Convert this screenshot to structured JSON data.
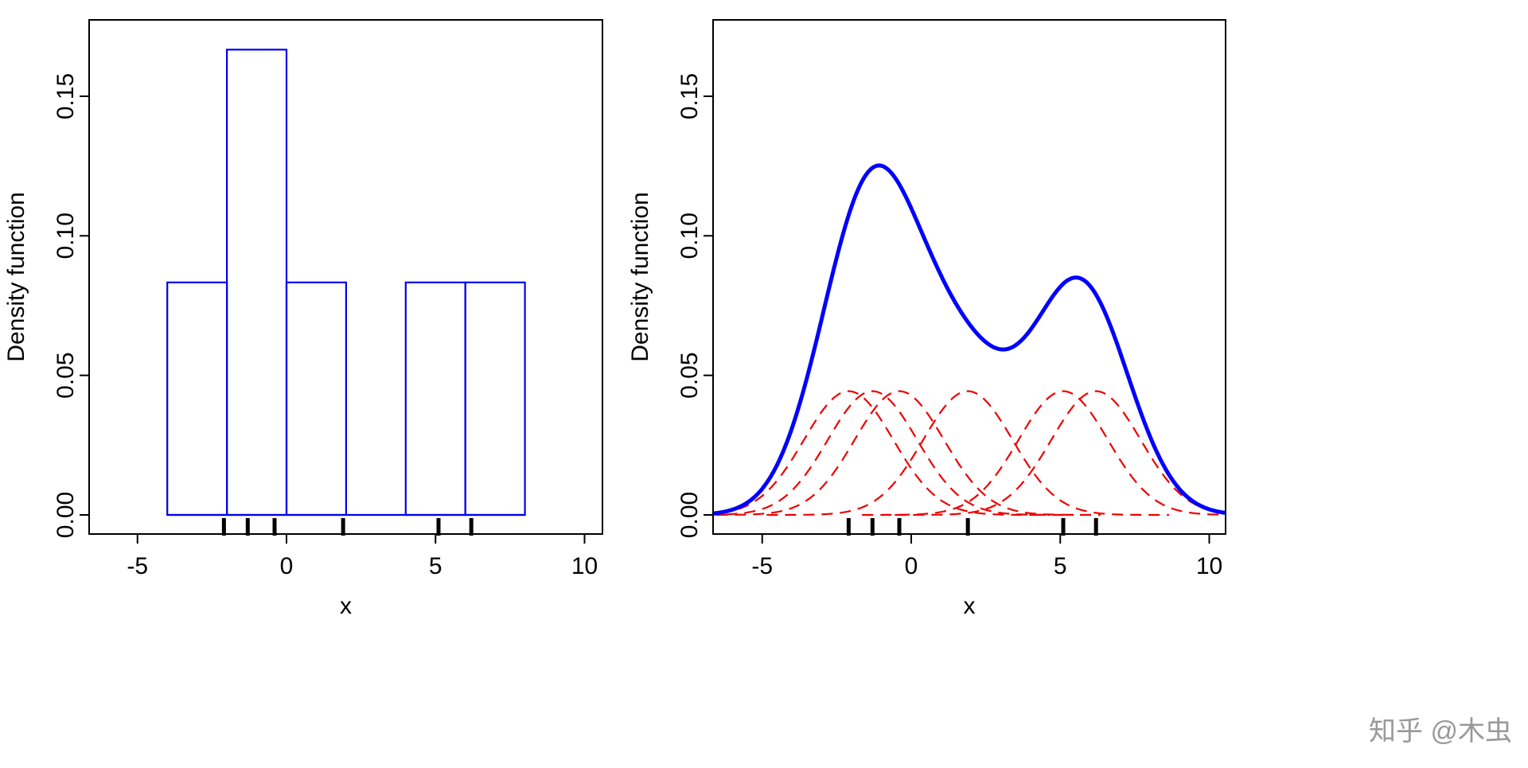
{
  "chart_data": [
    {
      "type": "bar",
      "subtype": "histogram",
      "xlabel": "x",
      "ylabel": "Density function",
      "xlim": [
        -6.6,
        10.6
      ],
      "ylim": [
        0,
        0.175
      ],
      "x_ticks": [
        "-5",
        "0",
        "5",
        "10"
      ],
      "y_ticks": [
        "0.00",
        "0.05",
        "0.10",
        "0.15"
      ],
      "bins": [
        {
          "from": -4,
          "to": -2,
          "value": 0.0833
        },
        {
          "from": -2,
          "to": 0,
          "value": 0.1667
        },
        {
          "from": 0,
          "to": 2,
          "value": 0.0833
        },
        {
          "from": 2,
          "to": 4,
          "value": 0
        },
        {
          "from": 4,
          "to": 6,
          "value": 0.0833
        },
        {
          "from": 6,
          "to": 8,
          "value": 0.0833
        }
      ],
      "rug": [
        -2.1,
        -1.3,
        -0.4,
        1.9,
        5.1,
        6.2
      ],
      "colors": {
        "bars": "#0000ee",
        "rug": "#000000"
      },
      "grid": false
    },
    {
      "type": "line",
      "subtype": "kernel density estimate",
      "xlabel": "x",
      "ylabel": "Density function",
      "xlim": [
        -6.6,
        10.6
      ],
      "ylim": [
        0,
        0.175
      ],
      "x_ticks": [
        "-5",
        "0",
        "5",
        "10"
      ],
      "y_ticks": [
        "0.00",
        "0.05",
        "0.10",
        "0.15"
      ],
      "data_points": [
        -2.1,
        -1.3,
        -0.4,
        1.9,
        5.1,
        6.2
      ],
      "kernel": "gaussian",
      "kernel_sd": 1.5,
      "colors": {
        "kde": "#0000ff",
        "kernels": "#ee0000",
        "rug": "#000000"
      },
      "grid": false
    }
  ],
  "watermark": "知乎 @木虫"
}
